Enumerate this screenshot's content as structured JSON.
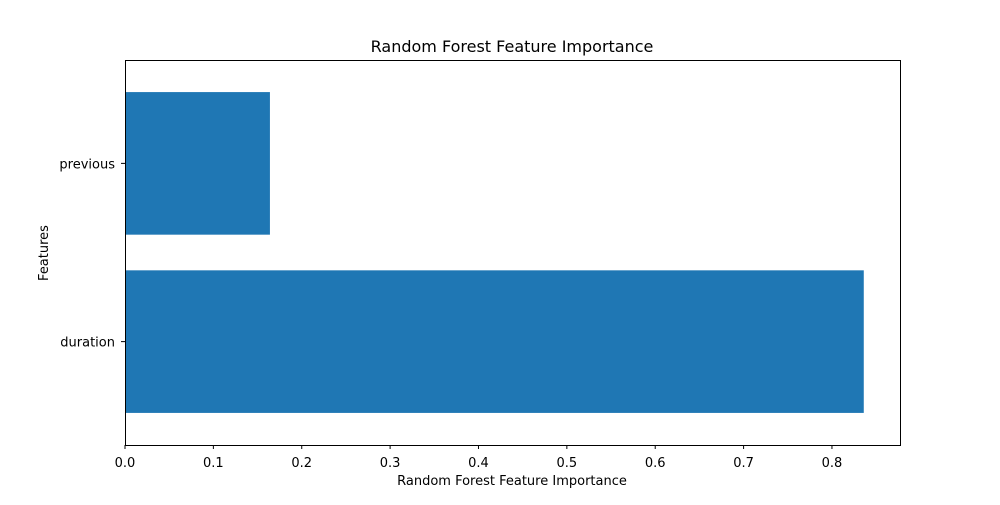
{
  "chart_data": {
    "type": "bar",
    "orientation": "horizontal",
    "title": "Random Forest Feature Importance",
    "xlabel": "Random Forest Feature Importance",
    "ylabel": "Features",
    "categories": [
      "duration",
      "previous"
    ],
    "values": [
      0.836,
      0.164
    ],
    "xlim": [
      0,
      0.877
    ],
    "xticks": [
      0.0,
      0.1,
      0.2,
      0.3,
      0.4,
      0.5,
      0.6,
      0.7,
      0.8
    ],
    "xtick_labels": [
      "0.0",
      "0.1",
      "0.2",
      "0.3",
      "0.4",
      "0.5",
      "0.6",
      "0.7",
      "0.8"
    ],
    "bar_color": "#1f77b4",
    "grid": false,
    "legend": "none"
  }
}
